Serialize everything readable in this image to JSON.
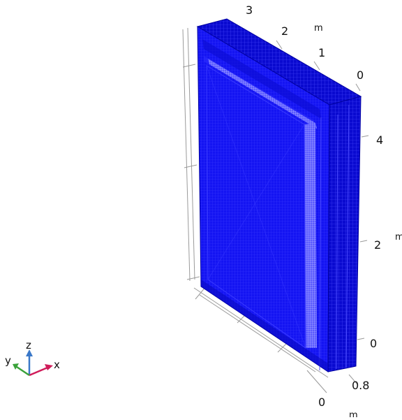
{
  "scene": {
    "description_visible": false,
    "mesh_color": "#1010f0",
    "mesh_dark": "#0606b8",
    "mesh_light": "#2c2cff",
    "grid_color": "#999999"
  },
  "axes": {
    "top_ticks": [
      "3",
      "2",
      "1",
      "0"
    ],
    "top_unit": "m",
    "right_ticks": [
      "4",
      "2",
      "0"
    ],
    "right_unit": "m",
    "bottom_ticks": [
      "0.8",
      "0"
    ],
    "bottom_unit": "m"
  },
  "triad": {
    "x": "x",
    "y": "y",
    "z": "z",
    "x_color": "#d01c5a",
    "y_color": "#3aa23a",
    "z_color": "#3a78c8"
  }
}
